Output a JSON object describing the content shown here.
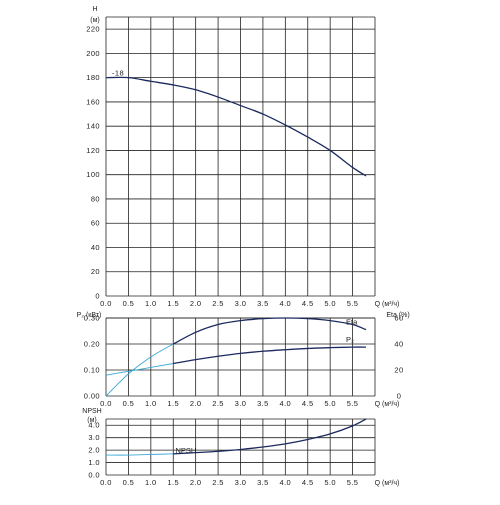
{
  "colors": {
    "curve": "#1a2a5e",
    "partial_curve": "#3aa7d6",
    "grid": "#222222",
    "text": "#222222"
  },
  "chart_data": [
    {
      "type": "line",
      "name": "head",
      "ylabel_top": "H",
      "ylabel_unit": "(м)",
      "xlabel": "Q (м³/ч)",
      "xlim": [
        0,
        6.0
      ],
      "ylim": [
        0,
        230
      ],
      "x_ticks": [
        "0.0",
        "0.5",
        "1.0",
        "1.5",
        "2.0",
        "2.5",
        "3.0",
        "3.5",
        "4.0",
        "4.5",
        "5.0",
        "5.5"
      ],
      "y_ticks": [
        "0",
        "20",
        "40",
        "60",
        "80",
        "100",
        "120",
        "140",
        "160",
        "180",
        "200",
        "220"
      ],
      "annotation": "-18",
      "series": [
        {
          "x": [
            0.0,
            0.5,
            1.0,
            1.5,
            2.0,
            2.5,
            3.0,
            3.5,
            4.0,
            4.5,
            5.0,
            5.5,
            5.8
          ],
          "values": [
            180,
            180,
            177,
            174,
            170,
            164,
            157,
            150,
            141,
            131,
            120,
            106,
            99
          ]
        }
      ]
    },
    {
      "type": "line",
      "name": "power-efficiency",
      "ylabel_left": "P₂ (кВт)",
      "ylabel_right": "Eta (%)",
      "xlabel": "Q (м³/ч)",
      "xlim": [
        0,
        6.0
      ],
      "ylim_left": [
        0,
        0.3
      ],
      "ylim_right": [
        0,
        60
      ],
      "x_ticks": [
        "0.0",
        "0.5",
        "1.0",
        "1.5",
        "2.0",
        "2.5",
        "3.0",
        "3.5",
        "4.0",
        "4.5",
        "5.0",
        "5.5"
      ],
      "y_ticks_left": [
        "0.00",
        "0.10",
        "0.20",
        "0.30"
      ],
      "y_ticks_right": [
        "0",
        "20",
        "40",
        "60"
      ],
      "series": [
        {
          "name": "Eta",
          "axis": "right",
          "dashed_x": [
            0.0,
            0.5,
            1.0,
            1.5
          ],
          "dashed_values": [
            0,
            17,
            30,
            40
          ],
          "x": [
            1.5,
            2.0,
            2.5,
            3.0,
            3.5,
            4.0,
            4.5,
            5.0,
            5.5,
            5.8
          ],
          "values": [
            40,
            49,
            55,
            58,
            59.5,
            60,
            59.5,
            58,
            55,
            51
          ]
        },
        {
          "name": "P₂",
          "axis": "left",
          "dashed_x": [
            0.0,
            0.5,
            1.0,
            1.5
          ],
          "dashed_values": [
            0.08,
            0.095,
            0.11,
            0.125
          ],
          "x": [
            1.5,
            2.0,
            2.5,
            3.0,
            3.5,
            4.0,
            4.5,
            5.0,
            5.5,
            5.8
          ],
          "values": [
            0.125,
            0.14,
            0.153,
            0.164,
            0.172,
            0.178,
            0.183,
            0.186,
            0.188,
            0.188
          ]
        }
      ]
    },
    {
      "type": "line",
      "name": "npsh",
      "ylabel_top": "NPSH",
      "ylabel_unit": "(м)",
      "xlabel": "Q (м³/ч)",
      "xlim": [
        0,
        6.0
      ],
      "ylim": [
        0,
        4.5
      ],
      "x_ticks": [
        "0.0",
        "0.5",
        "1.0",
        "1.5",
        "2.0",
        "2.5",
        "3.0",
        "3.5",
        "4.0",
        "4.5",
        "5.0",
        "5.5"
      ],
      "y_ticks": [
        "0.0",
        "1.0",
        "2.0",
        "3.0",
        "4.0"
      ],
      "series": [
        {
          "name": "NPSH",
          "dashed_x": [
            0.0,
            0.5,
            1.0,
            1.5
          ],
          "dashed_values": [
            1.6,
            1.6,
            1.65,
            1.7
          ],
          "x": [
            1.5,
            2.0,
            2.5,
            3.0,
            3.5,
            4.0,
            4.5,
            5.0,
            5.5,
            5.8
          ],
          "values": [
            1.7,
            1.8,
            1.9,
            2.05,
            2.25,
            2.5,
            2.85,
            3.3,
            3.95,
            4.5
          ]
        }
      ]
    }
  ]
}
